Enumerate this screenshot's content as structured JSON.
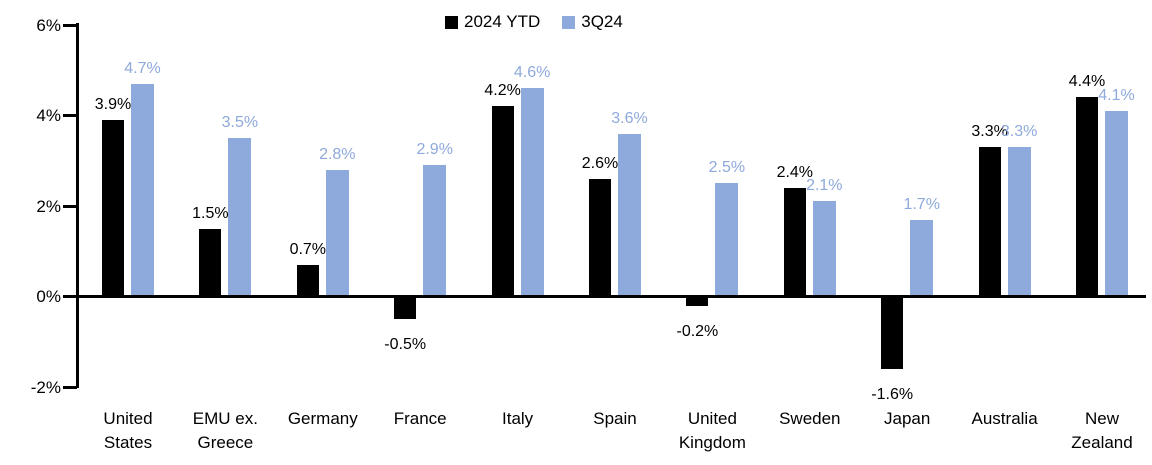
{
  "chart_data": {
    "type": "bar",
    "title": "",
    "categories": [
      "United States",
      "EMU ex. Greece",
      "Germany",
      "France",
      "Italy",
      "Spain",
      "United Kingdom",
      "Sweden",
      "Japan",
      "Australia",
      "New Zealand"
    ],
    "series": [
      {
        "name": "2024 YTD",
        "color": "#000000",
        "values": [
          3.9,
          1.5,
          0.7,
          -0.5,
          4.2,
          2.6,
          -0.2,
          2.4,
          -1.6,
          3.3,
          4.4
        ]
      },
      {
        "name": "3Q24",
        "color": "#8EA9DB",
        "values": [
          4.7,
          3.5,
          2.8,
          2.9,
          4.6,
          3.6,
          2.5,
          2.1,
          1.7,
          3.3,
          4.1
        ]
      }
    ],
    "value_labels": [
      {
        "series": "2024 YTD",
        "labels": [
          "3.9%",
          "1.5%",
          "0.7%",
          "-0.5%",
          "4.2%",
          "2.6%",
          "-0.2%",
          "2.4%",
          "-1.6%",
          "3.3%",
          "4.4%"
        ]
      },
      {
        "series": "3Q24",
        "labels": [
          "4.7%",
          "3.5%",
          "2.8%",
          "2.9%",
          "4.6%",
          "3.6%",
          "2.5%",
          "2.1%",
          "1.7%",
          "3.3%",
          "4.1%"
        ]
      }
    ],
    "y_axis": {
      "tick_labels": [
        "6%",
        "4%",
        "2%",
        "0%",
        "-2%"
      ],
      "tick_values": [
        6,
        4,
        2,
        0,
        -2
      ],
      "min": -2,
      "max": 6
    },
    "legend": {
      "position": "top-center",
      "entries": [
        "2024 YTD",
        "3Q24"
      ]
    },
    "grid": false,
    "colors": {
      "series1": "#000000",
      "series2": "#8EA9DB",
      "background": "#ffffff",
      "axis": "#000000"
    }
  }
}
